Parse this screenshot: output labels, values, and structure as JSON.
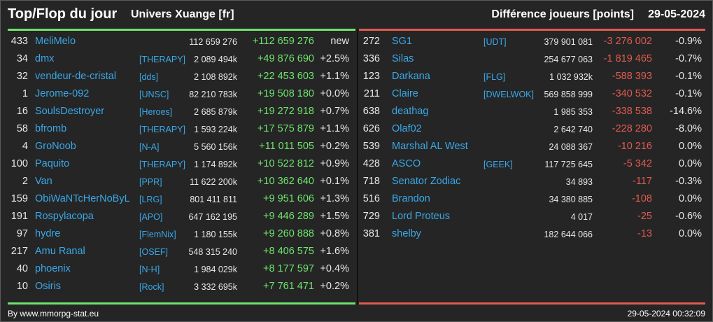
{
  "header": {
    "title": "Top/Flop du jour",
    "universe": "Univers Xuange [fr]",
    "metric": "Différence joueurs [points]",
    "date": "29-05-2024"
  },
  "colors": {
    "positive": "#6ee36e",
    "negative": "#e05a50",
    "link": "#3aa8e8",
    "background": "#252525"
  },
  "top": [
    {
      "rank": "433",
      "name": "MeliMelo",
      "alliance": "",
      "points": "112 659 276",
      "diff": "+112 659 276",
      "pct": "new"
    },
    {
      "rank": "34",
      "name": "dmx",
      "alliance": "[THERAPY]",
      "points": "2 089 494k",
      "diff": "+49 876 690",
      "pct": "+2.5%"
    },
    {
      "rank": "32",
      "name": "vendeur-de-cristal",
      "alliance": "[dds]",
      "points": "2 108 892k",
      "diff": "+22 453 603",
      "pct": "+1.1%"
    },
    {
      "rank": "1",
      "name": "Jerome-092",
      "alliance": "[UNSC]",
      "points": "82 210 783k",
      "diff": "+19 508 180",
      "pct": "+0.0%"
    },
    {
      "rank": "16",
      "name": "SoulsDestroyer",
      "alliance": "[Heroes]",
      "points": "2 685 879k",
      "diff": "+19 272 918",
      "pct": "+0.7%"
    },
    {
      "rank": "58",
      "name": "bfromb",
      "alliance": "[THERAPY]",
      "points": "1 593 224k",
      "diff": "+17 575 879",
      "pct": "+1.1%"
    },
    {
      "rank": "4",
      "name": "GroNoob",
      "alliance": "[N-A]",
      "points": "5 560 156k",
      "diff": "+11 011 505",
      "pct": "+0.2%"
    },
    {
      "rank": "100",
      "name": "Paquito",
      "alliance": "[THERAPY]",
      "points": "1 174 892k",
      "diff": "+10 522 812",
      "pct": "+0.9%"
    },
    {
      "rank": "2",
      "name": "Van",
      "alliance": "[PPR]",
      "points": "11 622 200k",
      "diff": "+10 362 640",
      "pct": "+0.1%"
    },
    {
      "rank": "159",
      "name": "ObiWaNTcHerNoByL",
      "alliance": "[LRG]",
      "points": "801 411 811",
      "diff": "+9 951 606",
      "pct": "+1.3%"
    },
    {
      "rank": "191",
      "name": "Rospylacopa",
      "alliance": "[APO]",
      "points": "647 162 195",
      "diff": "+9 446 289",
      "pct": "+1.5%"
    },
    {
      "rank": "97",
      "name": "hydre",
      "alliance": "[FlemNix]",
      "points": "1 180 155k",
      "diff": "+9 260 888",
      "pct": "+0.8%"
    },
    {
      "rank": "217",
      "name": "Amu Ranal",
      "alliance": "[OSEF]",
      "points": "548 315 240",
      "diff": "+8 406 575",
      "pct": "+1.6%"
    },
    {
      "rank": "40",
      "name": "phoenix",
      "alliance": "[N-H]",
      "points": "1 984 029k",
      "diff": "+8 177 597",
      "pct": "+0.4%"
    },
    {
      "rank": "10",
      "name": "Osiris",
      "alliance": "[Rock]",
      "points": "3 332 695k",
      "diff": "+7 761 471",
      "pct": "+0.2%"
    }
  ],
  "flop": [
    {
      "rank": "272",
      "name": "SG1",
      "alliance": "[UDT]",
      "points": "379 901 081",
      "diff": "-3 276 002",
      "pct": "-0.9%"
    },
    {
      "rank": "336",
      "name": "Silas",
      "alliance": "",
      "points": "254 677 063",
      "diff": "-1 819 465",
      "pct": "-0.7%"
    },
    {
      "rank": "123",
      "name": "Darkana",
      "alliance": "[FLG]",
      "points": "1 032 932k",
      "diff": "-588 393",
      "pct": "-0.1%"
    },
    {
      "rank": "211",
      "name": "Claire",
      "alliance": "[DWELWOK]",
      "points": "569 858 999",
      "diff": "-340 532",
      "pct": "-0.1%"
    },
    {
      "rank": "638",
      "name": "deathag",
      "alliance": "",
      "points": "1 985 353",
      "diff": "-338 538",
      "pct": "-14.6%"
    },
    {
      "rank": "626",
      "name": "Olaf02",
      "alliance": "",
      "points": "2 642 740",
      "diff": "-228 280",
      "pct": "-8.0%"
    },
    {
      "rank": "539",
      "name": "Marshal AL West",
      "alliance": "",
      "points": "24 088 367",
      "diff": "-10 216",
      "pct": "0.0%"
    },
    {
      "rank": "428",
      "name": "ASCO",
      "alliance": "[GEEK]",
      "points": "117 725 645",
      "diff": "-5 342",
      "pct": "0.0%"
    },
    {
      "rank": "718",
      "name": "Senator Zodiac",
      "alliance": "",
      "points": "34 893",
      "diff": "-117",
      "pct": "-0.3%"
    },
    {
      "rank": "516",
      "name": "Brandon",
      "alliance": "",
      "points": "34 380 885",
      "diff": "-108",
      "pct": "0.0%"
    },
    {
      "rank": "729",
      "name": "Lord Proteus",
      "alliance": "",
      "points": "4 017",
      "diff": "-25",
      "pct": "-0.6%"
    },
    {
      "rank": "381",
      "name": "shelby",
      "alliance": "",
      "points": "182 644 066",
      "diff": "-13",
      "pct": "0.0%"
    }
  ],
  "footer": {
    "credit": "By www.mmorpg-stat.eu",
    "timestamp": "29-05-2024 00:32:09"
  }
}
